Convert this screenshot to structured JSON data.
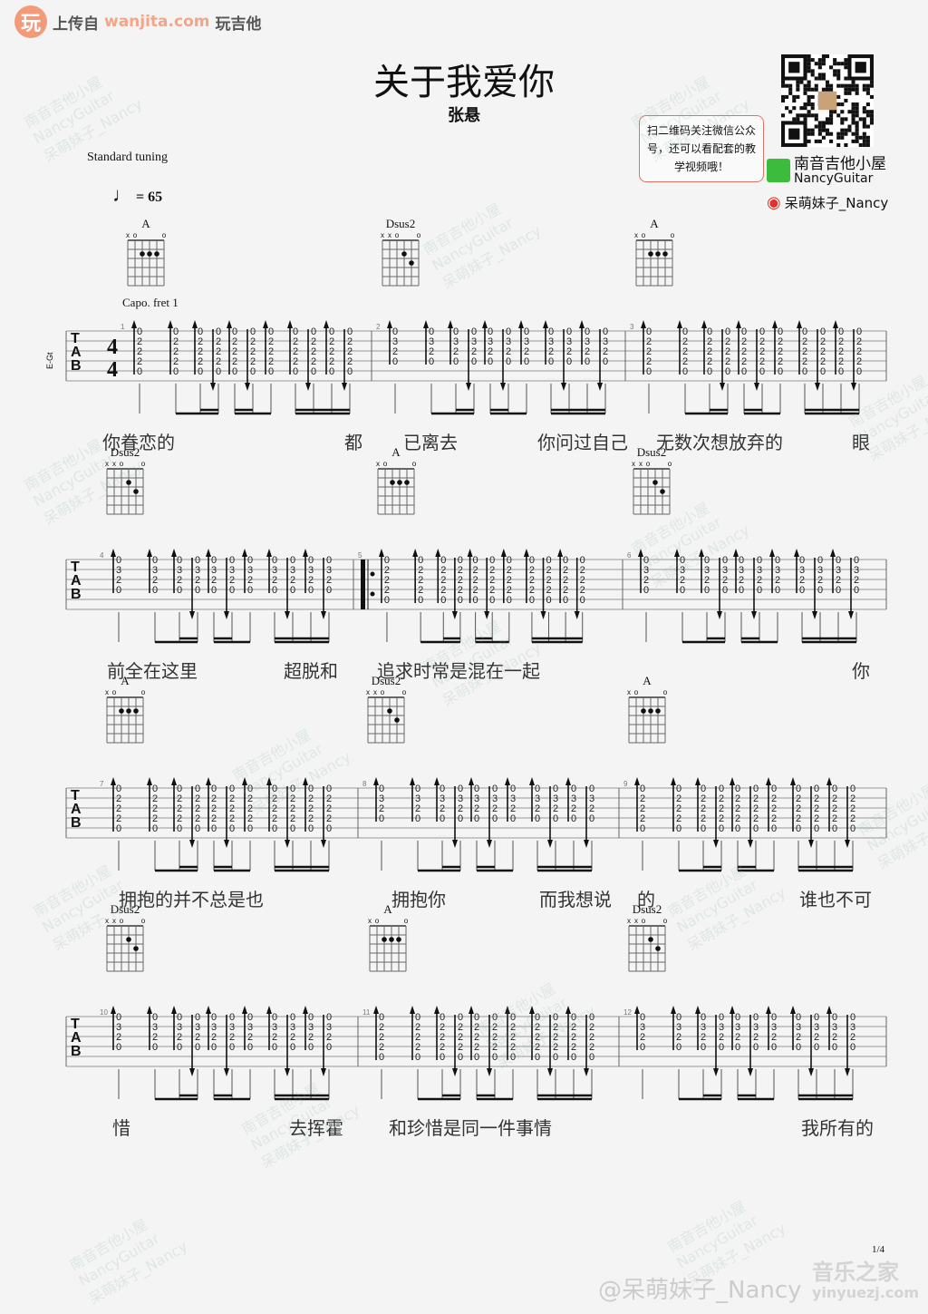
{
  "header": {
    "logo_glyph": "玩",
    "uploaded_from": "上传自",
    "site": "wanjita.com",
    "site_name": "玩吉他"
  },
  "song": {
    "title": "关于我爱你",
    "artist": "张悬",
    "tuning": "Standard tuning",
    "tempo": "= 65",
    "capo": "Capo. fret 1",
    "instrument": "E-Gt"
  },
  "promo": {
    "bubble": "扫二维码关注微信公众号，还可以看配套的教学视频哦！",
    "wechat_name": "南音吉他小屋",
    "wechat_en": "NancyGuitar",
    "weibo": "呆萌妹子_Nancy",
    "accent": "#d9746a"
  },
  "footer": {
    "page": "1/4",
    "weibo": "@呆萌妹子_Nancy",
    "watermark": "音乐之家",
    "watermark_url": "yinyuezj.com"
  },
  "watermark": {
    "line1": "南音吉他小屋",
    "line2": "NancyGuitar",
    "line3": "呆萌妹子_Nancy"
  },
  "chords": {
    "A": {
      "name": "A",
      "markers": [
        "x",
        "o",
        "",
        "",
        "",
        "o"
      ],
      "dots": [
        [
          2,
          2
        ],
        [
          3,
          2
        ],
        [
          4,
          2
        ]
      ],
      "tab": [
        "0",
        "2",
        "2",
        "2",
        "0",
        ""
      ]
    },
    "Dsus2": {
      "name": "Dsus2",
      "markers": [
        "x",
        "x",
        "o",
        "",
        "",
        "o"
      ],
      "dots": [
        [
          3,
          2
        ],
        [
          4,
          3
        ]
      ],
      "tab": [
        "0",
        "3",
        "2",
        "0",
        "",
        ""
      ]
    }
  },
  "strum": [
    "up",
    "up",
    "up",
    "down",
    "up",
    "down",
    "up",
    "up",
    "down",
    "up",
    "down"
  ],
  "systems": [
    {
      "measures": [
        {
          "num": "1",
          "chord": "A"
        },
        {
          "num": "2",
          "chord": "Dsus2"
        },
        {
          "num": "3",
          "chord": "A"
        }
      ],
      "lyrics": [
        "你眷恋的",
        "都",
        "已离去",
        "你问过自己",
        "无数次想放弃的",
        "眼"
      ]
    },
    {
      "measures": [
        {
          "num": "4",
          "chord": "Dsus2"
        },
        {
          "num": "5",
          "chord": "A",
          "repeat": true
        },
        {
          "num": "6",
          "chord": "Dsus2"
        }
      ],
      "lyrics": [
        "前全在这里",
        "超脱和",
        "追求时常是混在一起",
        "你"
      ]
    },
    {
      "measures": [
        {
          "num": "7",
          "chord": "A"
        },
        {
          "num": "8",
          "chord": "Dsus2"
        },
        {
          "num": "9",
          "chord": "A"
        }
      ],
      "lyrics": [
        "拥抱的并不总是也",
        "拥抱你",
        "而我想说",
        "的",
        "谁也不可"
      ]
    },
    {
      "measures": [
        {
          "num": "10",
          "chord": "Dsus2"
        },
        {
          "num": "11",
          "chord": "A"
        },
        {
          "num": "12",
          "chord": "Dsus2"
        }
      ],
      "lyrics": [
        "惜",
        "去挥霍",
        "和珍惜是同一件事情",
        "我所有的"
      ]
    }
  ],
  "time_signature": {
    "top": "4",
    "bottom": "4"
  },
  "tab_letters": [
    "T",
    "A",
    "B"
  ]
}
